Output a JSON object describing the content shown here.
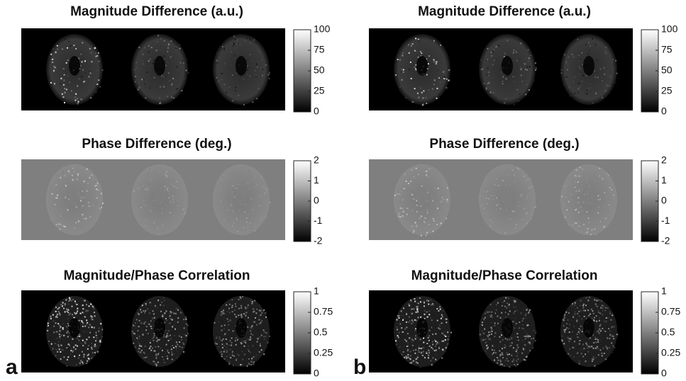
{
  "panels": [
    {
      "label": "a",
      "rows": [
        {
          "title": "Magnitude Difference (a.u.)",
          "colorbar_ticks": [
            100,
            75,
            50,
            25,
            0
          ]
        },
        {
          "title": "Phase Difference (deg.)",
          "colorbar_ticks": [
            2,
            1,
            0,
            -1,
            -2
          ]
        },
        {
          "title": "Magnitude/Phase Correlation",
          "colorbar_ticks": [
            1,
            0.75,
            0.5,
            0.25,
            0
          ]
        }
      ]
    },
    {
      "label": "b",
      "rows": [
        {
          "title": "Magnitude Difference (a.u.)",
          "colorbar_ticks": [
            100,
            75,
            50,
            25,
            0
          ]
        },
        {
          "title": "Phase Difference (deg.)",
          "colorbar_ticks": [
            2,
            1,
            0,
            -1,
            -2
          ]
        },
        {
          "title": "Magnitude/Phase Correlation",
          "colorbar_ticks": [
            1,
            0.75,
            0.5,
            0.25,
            0
          ]
        }
      ]
    }
  ]
}
